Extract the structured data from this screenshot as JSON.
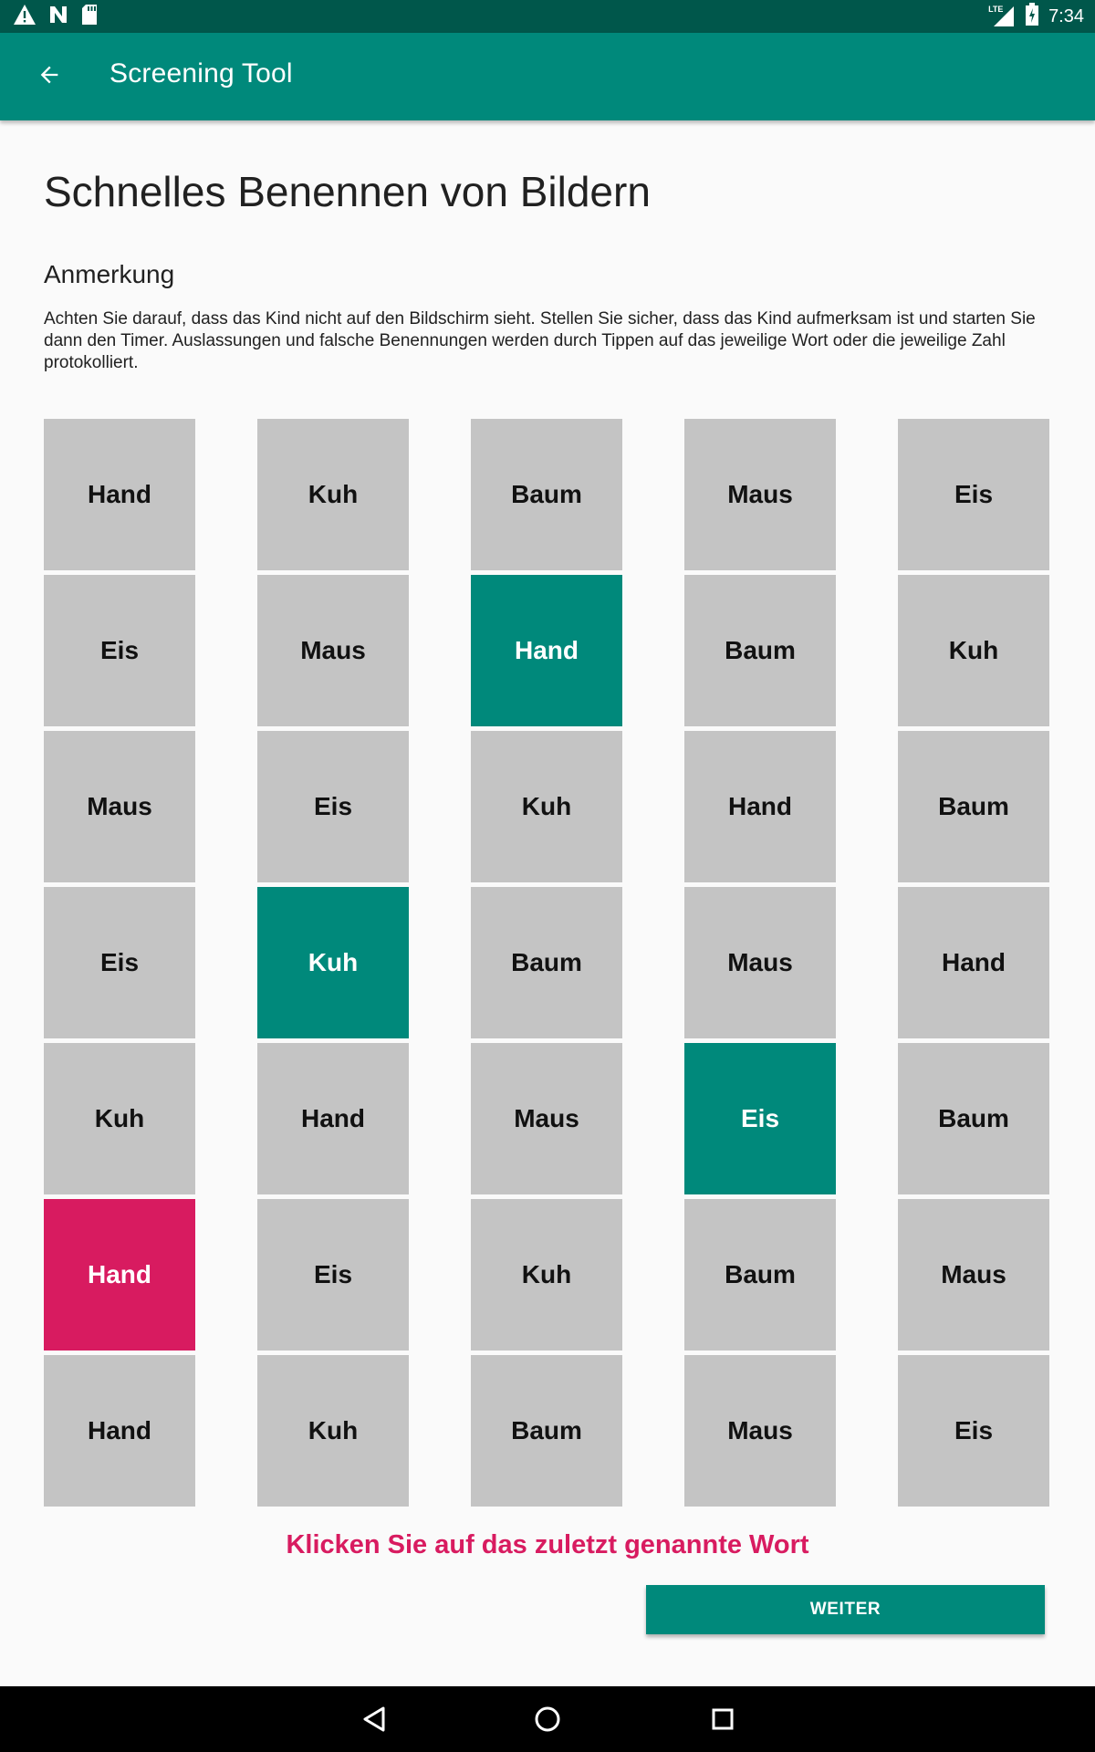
{
  "status_bar": {
    "time": "7:34",
    "left_icons": [
      "warning-icon",
      "n-logo-icon",
      "sd-card-icon"
    ],
    "right_icons": [
      "lte-signal-icon",
      "battery-icon"
    ],
    "lte_label": "LTE"
  },
  "app_bar": {
    "title": "Screening Tool",
    "back_icon": "arrow-back-icon",
    "background": "#00897b",
    "status_background": "#00574b"
  },
  "page": {
    "title": "Schnelles Benennen von Bildern",
    "note_heading": "Anmerkung",
    "note_text": "Achten Sie darauf, dass das Kind nicht auf den Bildschirm sieht. Stellen Sie sicher, dass das Kind aufmerksam ist und starten Sie dann den Timer. Auslassungen und falsche Benennungen werden durch Tippen auf das jeweilige Wort oder die jeweilige Zahl protokolliert."
  },
  "colors": {
    "tile_default": "#c4c4c4",
    "tile_marked": "#00897b",
    "tile_last": "#d81b60",
    "prompt": "#d81b60"
  },
  "grid": {
    "rows": [
      [
        {
          "word": "Hand",
          "state": "default"
        },
        {
          "word": "Kuh",
          "state": "default"
        },
        {
          "word": "Baum",
          "state": "default"
        },
        {
          "word": "Maus",
          "state": "default"
        },
        {
          "word": "Eis",
          "state": "default"
        }
      ],
      [
        {
          "word": "Eis",
          "state": "default"
        },
        {
          "word": "Maus",
          "state": "default"
        },
        {
          "word": "Hand",
          "state": "marked"
        },
        {
          "word": "Baum",
          "state": "default"
        },
        {
          "word": "Kuh",
          "state": "default"
        }
      ],
      [
        {
          "word": "Maus",
          "state": "default"
        },
        {
          "word": "Eis",
          "state": "default"
        },
        {
          "word": "Kuh",
          "state": "default"
        },
        {
          "word": "Hand",
          "state": "default"
        },
        {
          "word": "Baum",
          "state": "default"
        }
      ],
      [
        {
          "word": "Eis",
          "state": "default"
        },
        {
          "word": "Kuh",
          "state": "marked"
        },
        {
          "word": "Baum",
          "state": "default"
        },
        {
          "word": "Maus",
          "state": "default"
        },
        {
          "word": "Hand",
          "state": "default"
        }
      ],
      [
        {
          "word": "Kuh",
          "state": "default"
        },
        {
          "word": "Hand",
          "state": "default"
        },
        {
          "word": "Maus",
          "state": "default"
        },
        {
          "word": "Eis",
          "state": "marked"
        },
        {
          "word": "Baum",
          "state": "default"
        }
      ],
      [
        {
          "word": "Hand",
          "state": "last"
        },
        {
          "word": "Eis",
          "state": "default"
        },
        {
          "word": "Kuh",
          "state": "default"
        },
        {
          "word": "Baum",
          "state": "default"
        },
        {
          "word": "Maus",
          "state": "default"
        }
      ],
      [
        {
          "word": "Hand",
          "state": "default"
        },
        {
          "word": "Kuh",
          "state": "default"
        },
        {
          "word": "Baum",
          "state": "default"
        },
        {
          "word": "Maus",
          "state": "default"
        },
        {
          "word": "Eis",
          "state": "default"
        }
      ]
    ]
  },
  "prompt": "Klicken Sie auf das zuletzt genannte Wort",
  "next_button": "WEITER",
  "nav_bar": {
    "icons": [
      "nav-back-icon",
      "nav-home-icon",
      "nav-recents-icon"
    ]
  }
}
